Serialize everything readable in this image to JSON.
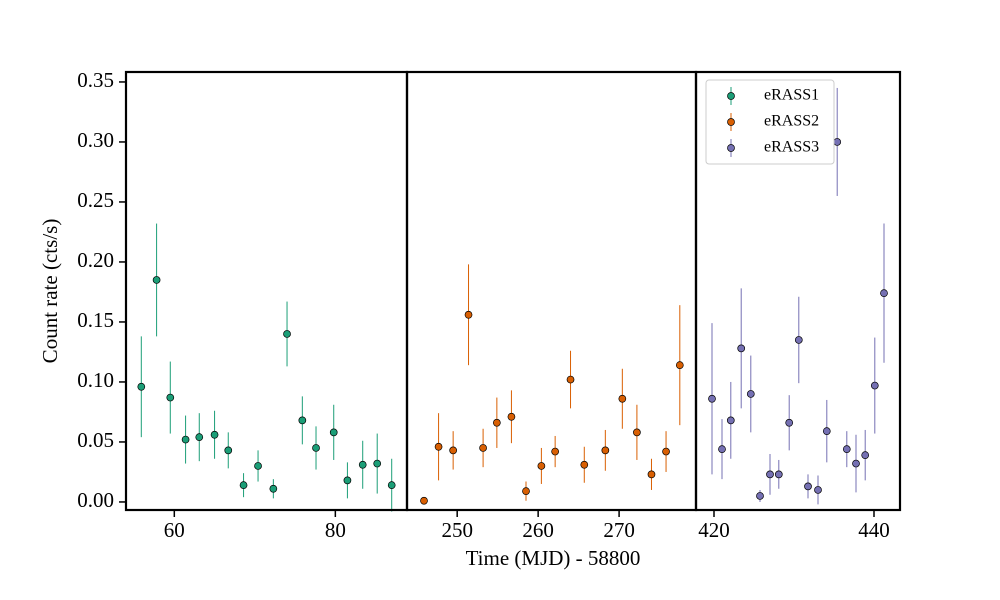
{
  "chart_data": {
    "type": "scatter",
    "xlabel": "Time (MJD) - 58800",
    "ylabel": "Count rate (cts/s)",
    "ylim": [
      -0.0067,
      0.3583
    ],
    "yticks": [
      {
        "value": 0,
        "label": "0.00"
      },
      0.05,
      {
        "value": 0.1,
        "label": "0.10"
      },
      0.15,
      {
        "value": 0.2,
        "label": "0.20"
      },
      0.25,
      {
        "value": 0.3,
        "label": "0.30"
      },
      0.35
    ],
    "legend": "upper left",
    "panels": [
      {
        "xlim": [
          54.0,
          88.9
        ],
        "xticks": [
          60,
          80
        ],
        "series": [
          {
            "name": "eRASS1",
            "color": "#1b9e77",
            "x": [
              55.9,
              57.8,
              59.5,
              61.4,
              63.1,
              65.0,
              66.7,
              68.6,
              70.4,
              72.3,
              74.0,
              75.9,
              77.6,
              79.8,
              81.5,
              83.4,
              85.2,
              87.0
            ],
            "values": [
              0.096,
              0.185,
              0.087,
              0.052,
              0.054,
              0.056,
              0.043,
              0.014,
              0.03,
              0.011,
              0.14,
              0.068,
              0.045,
              0.058,
              0.018,
              0.031,
              0.032,
              0.014
            ],
            "errors": [
              0.042,
              0.047,
              0.03,
              0.02,
              0.02,
              0.02,
              0.015,
              0.01,
              0.013,
              0.008,
              0.027,
              0.02,
              0.018,
              0.023,
              0.015,
              0.02,
              0.025,
              0.022
            ]
          }
        ]
      },
      {
        "xlim": [
          243.8,
          279.5
        ],
        "xticks": [
          250,
          260,
          270
        ],
        "series": [
          {
            "name": "eRASS2",
            "color": "#d95f02",
            "x": [
              245.9,
              247.7,
              249.5,
              251.4,
              253.2,
              254.9,
              256.7,
              258.5,
              260.4,
              262.1,
              264.0,
              265.7,
              268.3,
              270.4,
              272.2,
              274.0,
              275.8,
              277.5
            ],
            "values": [
              0.001,
              0.046,
              0.043,
              0.156,
              0.045,
              0.066,
              0.071,
              0.009,
              0.03,
              0.042,
              0.102,
              0.031,
              0.043,
              0.086,
              0.058,
              0.023,
              0.042,
              0.114
            ],
            "errors": [
              0.002,
              0.028,
              0.016,
              0.042,
              0.016,
              0.021,
              0.022,
              0.008,
              0.015,
              0.013,
              0.024,
              0.015,
              0.017,
              0.025,
              0.023,
              0.013,
              0.017,
              0.05
            ]
          }
        ]
      },
      {
        "xlim": [
          417.75,
          443.25
        ],
        "xticks": [
          420,
          440
        ],
        "series": [
          {
            "name": "eRASS3",
            "color": "#7570b3",
            "x": [
              419.75,
              421.0,
              422.1,
              423.4,
              424.6,
              425.75,
              427.0,
              428.1,
              429.4,
              430.6,
              431.75,
              433.0,
              434.1,
              435.4,
              436.6,
              437.75,
              438.9,
              440.1,
              441.25
            ],
            "values": [
              0.086,
              0.044,
              0.068,
              0.128,
              0.09,
              0.005,
              0.023,
              0.023,
              0.066,
              0.135,
              0.013,
              0.01,
              0.059,
              0.3,
              0.044,
              0.032,
              0.039,
              0.097,
              0.174
            ],
            "errors": [
              0.063,
              0.025,
              0.032,
              0.05,
              0.032,
              0.005,
              0.017,
              0.012,
              0.023,
              0.036,
              0.01,
              0.012,
              0.026,
              0.045,
              0.015,
              0.024,
              0.021,
              0.04,
              0.058
            ]
          }
        ]
      }
    ]
  }
}
